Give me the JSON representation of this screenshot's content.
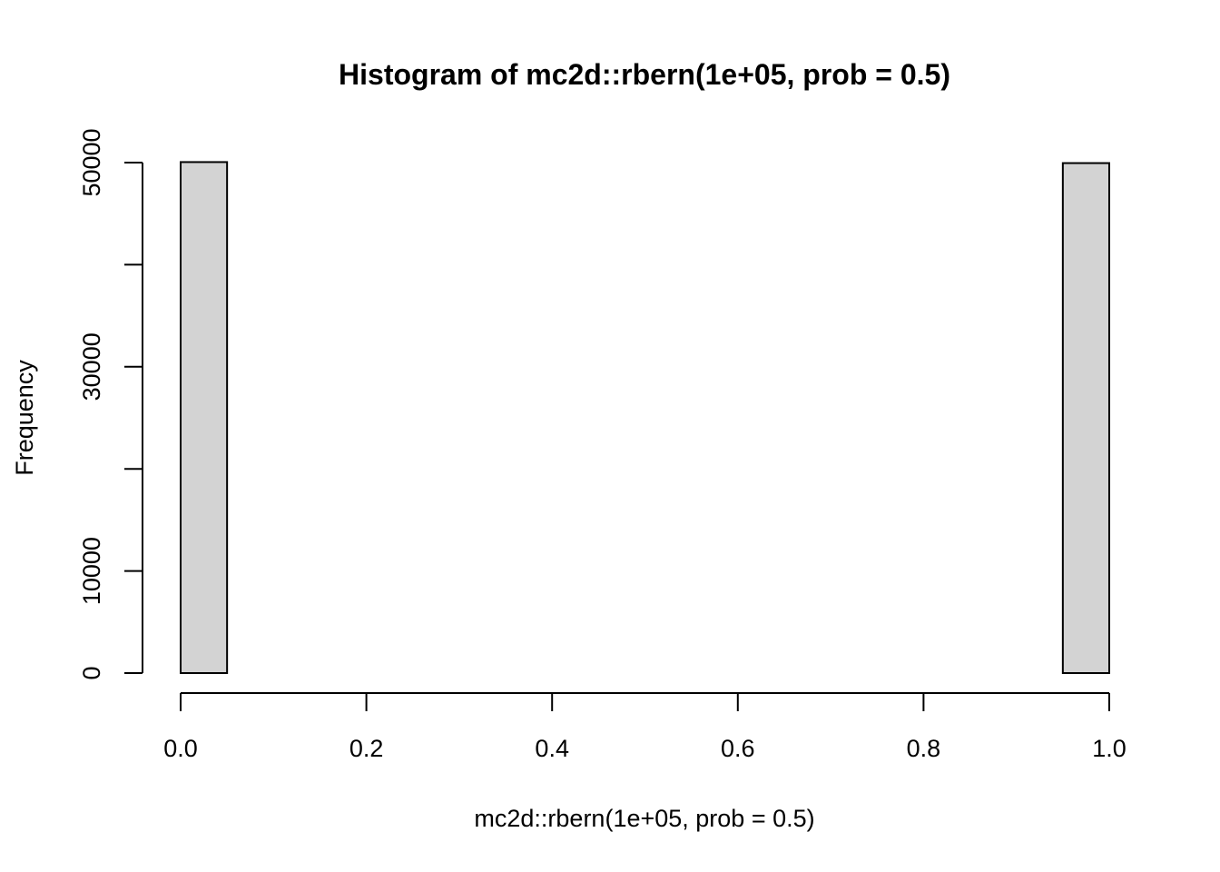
{
  "chart_data": {
    "type": "bar",
    "title": "Histogram of mc2d::rbern(1e+05, prob = 0.5)",
    "xlabel": "mc2d::rbern(1e+05, prob = 0.5)",
    "ylabel": "Frequency",
    "xlim": [
      0,
      1
    ],
    "ylim": [
      0,
      50000
    ],
    "x_ticks": [
      "0.0",
      "0.2",
      "0.4",
      "0.6",
      "0.8",
      "1.0"
    ],
    "y_ticks": [
      "0",
      "10000",
      "30000",
      "50000"
    ],
    "y_minor_ticks": [
      20000,
      40000
    ],
    "bins": [
      {
        "start": 0.0,
        "end": 0.05,
        "count": 50050
      },
      {
        "start": 0.05,
        "end": 0.1,
        "count": 0
      },
      {
        "start": 0.1,
        "end": 0.15,
        "count": 0
      },
      {
        "start": 0.15,
        "end": 0.2,
        "count": 0
      },
      {
        "start": 0.2,
        "end": 0.25,
        "count": 0
      },
      {
        "start": 0.25,
        "end": 0.3,
        "count": 0
      },
      {
        "start": 0.3,
        "end": 0.35,
        "count": 0
      },
      {
        "start": 0.35,
        "end": 0.4,
        "count": 0
      },
      {
        "start": 0.4,
        "end": 0.45,
        "count": 0
      },
      {
        "start": 0.45,
        "end": 0.5,
        "count": 0
      },
      {
        "start": 0.5,
        "end": 0.55,
        "count": 0
      },
      {
        "start": 0.55,
        "end": 0.6,
        "count": 0
      },
      {
        "start": 0.6,
        "end": 0.65,
        "count": 0
      },
      {
        "start": 0.65,
        "end": 0.7,
        "count": 0
      },
      {
        "start": 0.7,
        "end": 0.75,
        "count": 0
      },
      {
        "start": 0.75,
        "end": 0.8,
        "count": 0
      },
      {
        "start": 0.8,
        "end": 0.85,
        "count": 0
      },
      {
        "start": 0.85,
        "end": 0.9,
        "count": 0
      },
      {
        "start": 0.9,
        "end": 0.95,
        "count": 0
      },
      {
        "start": 0.95,
        "end": 1.0,
        "count": 49950
      }
    ],
    "bar_fill": "#d3d3d3",
    "bar_stroke": "#000000",
    "grid": false
  }
}
